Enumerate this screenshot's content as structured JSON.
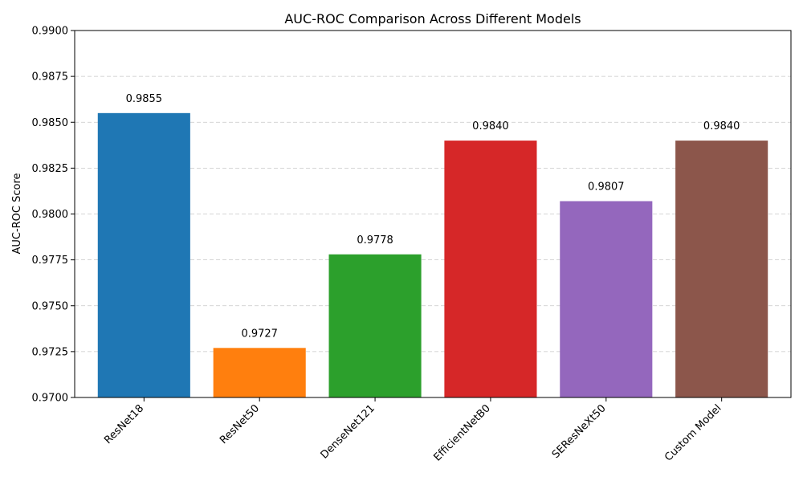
{
  "chart_data": {
    "type": "bar",
    "title": "AUC-ROC Comparison Across Different Models",
    "xlabel": "",
    "ylabel": "AUC-ROC Score",
    "ylim": [
      0.97,
      0.99
    ],
    "yticks": [
      0.97,
      0.9725,
      0.975,
      0.9775,
      0.98,
      0.9825,
      0.985,
      0.9875,
      0.99
    ],
    "ytick_labels": [
      "0.9700",
      "0.9725",
      "0.9750",
      "0.9775",
      "0.9800",
      "0.9825",
      "0.9850",
      "0.9875",
      "0.9900"
    ],
    "grid": "y-dashed",
    "categories": [
      "ResNet18",
      "ResNet50",
      "DenseNet121",
      "EfficientNetB0",
      "SEResNeXt50",
      "Custom Model"
    ],
    "values": [
      0.9855,
      0.9727,
      0.9778,
      0.984,
      0.9807,
      0.984
    ],
    "value_labels": [
      "0.9855",
      "0.9727",
      "0.9778",
      "0.9840",
      "0.9807",
      "0.9840"
    ],
    "colors": [
      "#1f77b4",
      "#ff7f0e",
      "#2ca02c",
      "#d62728",
      "#9467bd",
      "#8c564b"
    ]
  }
}
